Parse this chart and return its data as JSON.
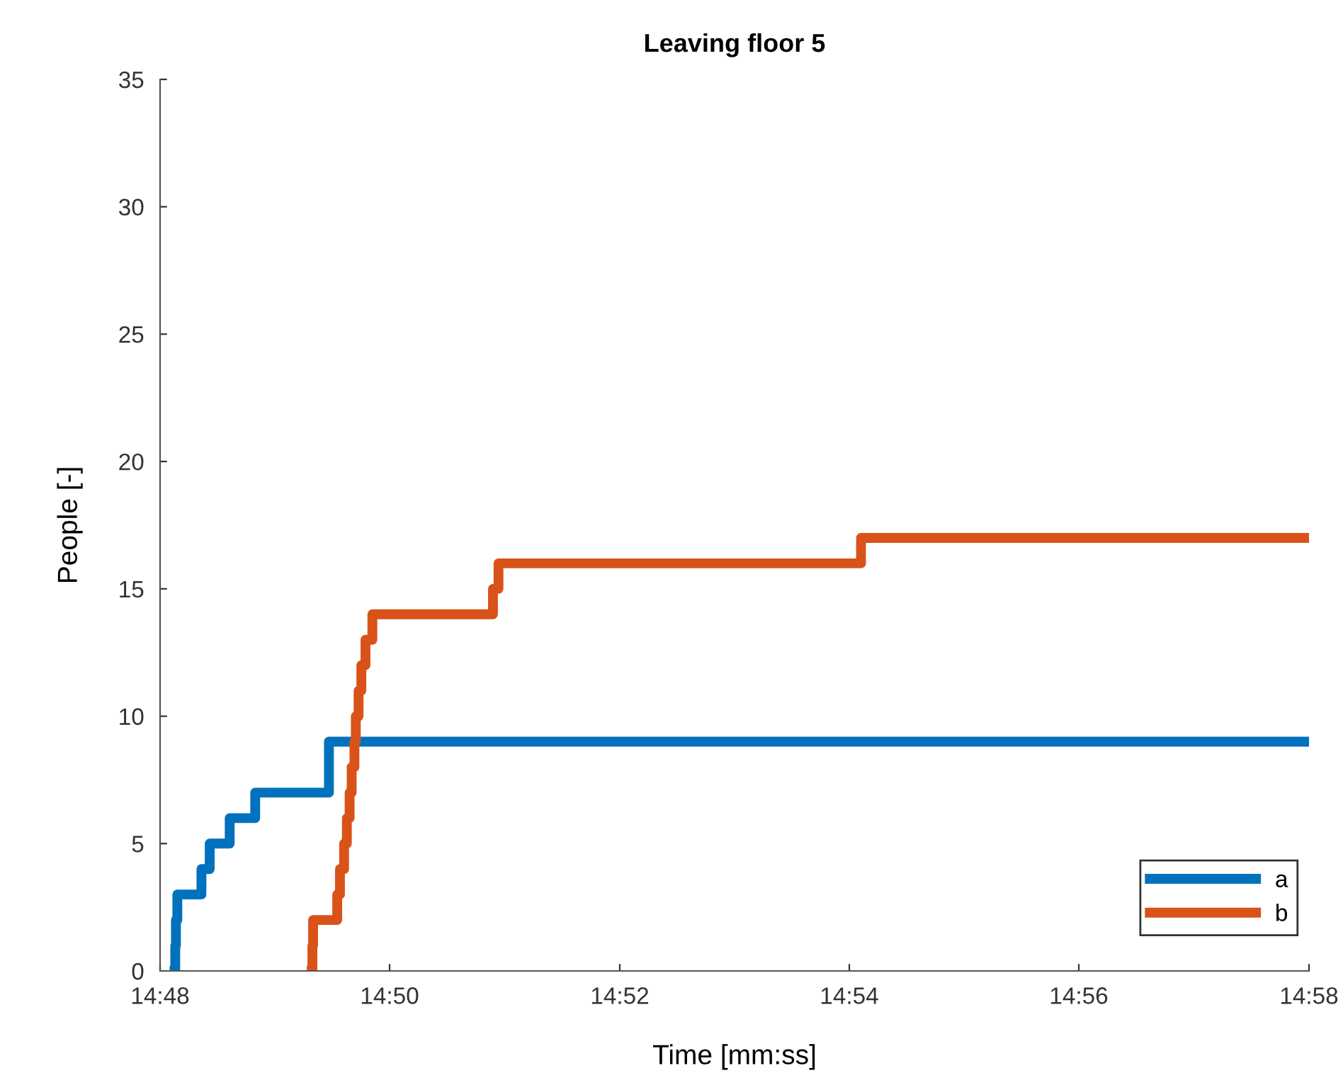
{
  "chart_data": {
    "type": "step",
    "title": "Leaving floor 5",
    "xlabel": "Time [mm:ss]",
    "ylabel": "People [-]",
    "xlim": [
      14.8,
      14.9667
    ],
    "xticks": [
      {
        "value": 14.8,
        "label": "14:48"
      },
      {
        "value": 14.8333,
        "label": "14:50"
      },
      {
        "value": 14.8667,
        "label": "14:52"
      },
      {
        "value": 14.9,
        "label": "14:54"
      },
      {
        "value": 14.9333,
        "label": "14:56"
      },
      {
        "value": 14.9667,
        "label": "14:58"
      }
    ],
    "ylim": [
      0,
      35
    ],
    "yticks": [
      0,
      5,
      10,
      15,
      20,
      25,
      30,
      35
    ],
    "grid": false,
    "legend": "bottom right",
    "series": [
      {
        "name": "a",
        "color": "#0072bd",
        "x": [
          14.8021,
          14.8022,
          14.8023,
          14.8025,
          14.806,
          14.8072,
          14.8101,
          14.8138,
          14.8245,
          14.9667
        ],
        "values": [
          0,
          1,
          2,
          3,
          4,
          5,
          6,
          7,
          9,
          9
        ]
      },
      {
        "name": "b",
        "color": "#d95319",
        "x": [
          14.822,
          14.8221,
          14.8222,
          14.8257,
          14.8261,
          14.8267,
          14.8271,
          14.8275,
          14.8278,
          14.8282,
          14.8284,
          14.8288,
          14.8292,
          14.8298,
          14.8308,
          14.8483,
          14.8491,
          14.9017,
          14.9667
        ],
        "values": [
          0,
          1,
          2,
          3,
          4,
          5,
          6,
          7,
          8,
          9,
          10,
          11,
          12,
          13,
          14,
          15,
          16,
          17,
          17
        ]
      }
    ]
  }
}
